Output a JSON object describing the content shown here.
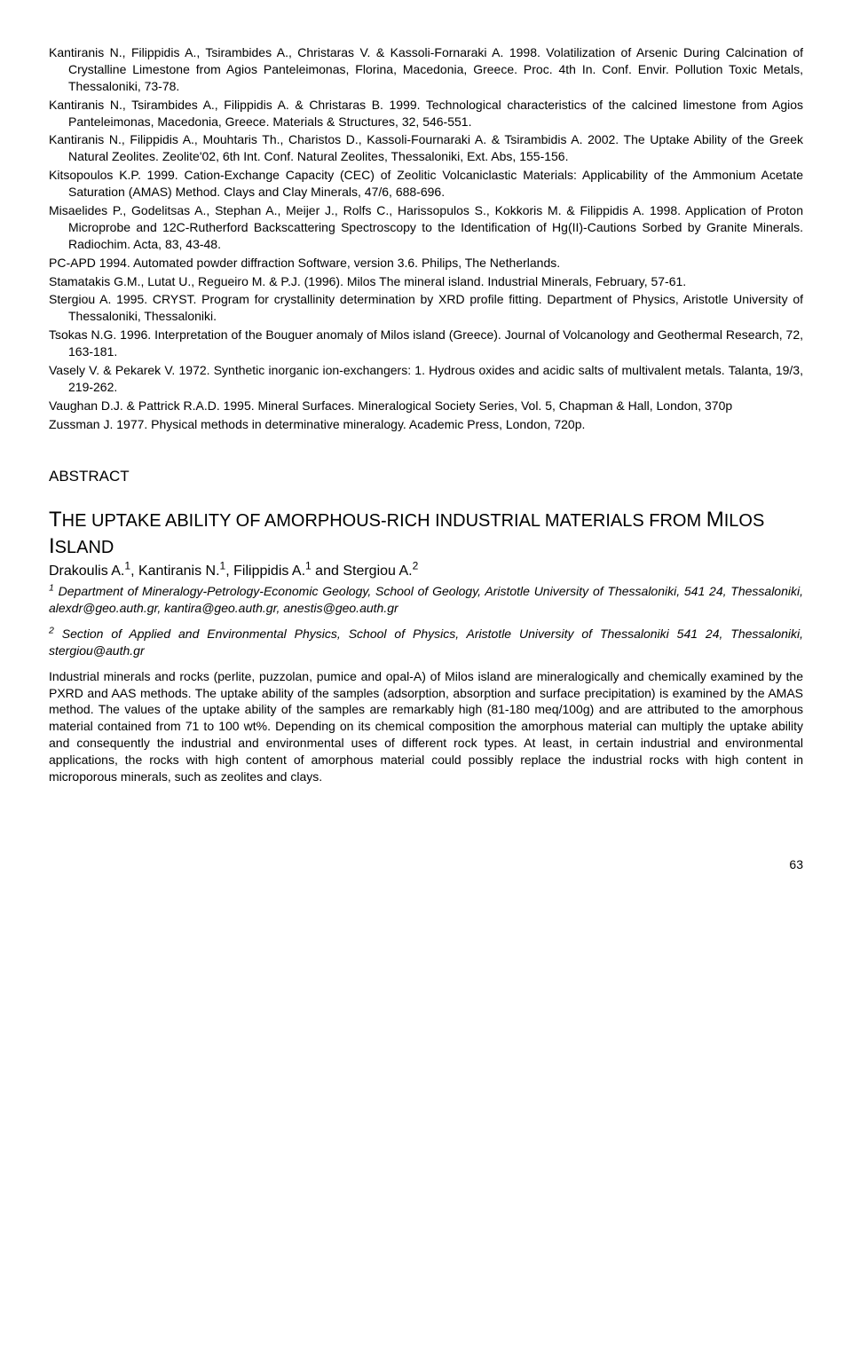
{
  "references": [
    "Kantiranis N., Filippidis A., Tsirambides A., Christaras V. & Kassoli-Fornaraki A. 1998. Volatilization of Arsenic During Calcination of Crystalline Limestone from Agios Panteleimonas, Florina, Macedonia, Greece. Proc. 4th In. Conf. Envir. Pollution Toxic Metals, Thessaloniki, 73-78.",
    "Kantiranis N., Tsirambides A., Filippidis A. & Christaras B. 1999. Technological characteristics of the calcined limestone from Agios Panteleimonas, Macedonia, Greece. Materials & Structures, 32, 546-551.",
    "Kantiranis N., Filippidis A., Mouhtaris Th., Charistos D., Kassoli-Fournaraki A. & Tsirambidis A. 2002. The Uptake Ability of the Greek Natural Zeolites. Zeolite'02, 6th Int. Conf. Natural Zeolites, Thessaloniki, Ext. Abs, 155-156.",
    "Kitsopoulos K.P. 1999. Cation-Exchange Capacity (CEC) of Zeolitic Volcaniclastic Materials: Applicability of the Ammonium Acetate Saturation (AMAS) Method. Clays and Clay Minerals, 47/6, 688-696.",
    "Misaelides P., Godelitsas A., Stephan A., Meijer J., Rolfs C., Harissopulos S., Kokkoris M. & Filippidis A. 1998. Application of Proton Microprobe and 12C-Rutherford Backscattering Spectroscopy to the Identification of Hg(II)-Cautions Sorbed by Granite Minerals. Radiochim. Acta, 83, 43-48.",
    "PC-APD 1994. Automated powder diffraction Software, version 3.6. Philips, The Netherlands.",
    "Stamatakis G.M., Lutat U., Regueiro M. & P.J. (1996). Milos The mineral island. Industrial Minerals, February, 57-61.",
    "Stergiou A. 1995. CRYST. Program for crystallinity determination by XRD profile fitting. Department of Physics, Aristotle University of Thessaloniki, Thessaloniki.",
    "Tsokas N.G. 1996. Interpretation of the Bouguer anomaly of Milos island (Greece). Journal of Volcanology and Geothermal Research, 72, 163-181.",
    "Vasely V. & Pekarek V. 1972. Synthetic inorganic ion-exchangers: 1. Hydrous oxides and acidic salts of multivalent metals. Talanta, 19/3, 219-262.",
    "Vaughan D.J. & Pattrick R.A.D. 1995. Mineral Surfaces. Mineralogical Society Series, Vol. 5, Chapman & Hall, London, 370p",
    "Zussman J. 1977. Physical methods in determinative mineralogy. Academic Press, London, 720p."
  ],
  "abstract_heading": "ABSTRACT",
  "title_pre_big1": "T",
  "title_mid1": "HE UPTAKE ABILITY OF AMORPHOUS-RICH INDUSTRIAL MATERIALS FROM ",
  "title_pre_big2": "M",
  "title_mid2": "ILOS ",
  "title_pre_big3": "I",
  "title_mid3": "SLAND",
  "authors": {
    "a1": "Drakoulis A.",
    "s1": "1",
    "a2": ", Kantiranis N.",
    "s2": "1",
    "a3": ", Filippidis A.",
    "s3": "1",
    "a4": " and Stergiou A.",
    "s4": "2"
  },
  "affil1_sup": "1",
  "affil1_text": " Department of Mineralogy-Petrology-Economic Geology, School of Geology, Aristotle University of Thessaloniki, 541 24, Thessaloniki, alexdr@geo.auth.gr, kantira@geo.auth.gr, anestis@geo.auth.gr",
  "affil2_sup": "2",
  "affil2_text": " Section of Applied and Environmental Physics, School of Physics, Aristotle University of Thessaloniki 541 24, Thessaloniki, stergiou@auth.gr",
  "abstract_body": "Industrial minerals and rocks (perlite, puzzolan, pumice and opal-A) of Milos island are mineralogically and chemically examined by the PXRD and AAS methods. The uptake ability of the samples (adsorption, absorption and surface precipitation) is examined by the AMAS method. The values of the uptake ability of the samples are remarkably high (81-180 meq/100g) and are attributed to the amorphous material contained from 71 to 100 wt%. Depending on its chemical composition the amorphous material can multiply the uptake ability and consequently the industrial and environmental uses of different rock types. At least, in certain industrial and environmental applications, the rocks with high content of amorphous material could possibly replace the industrial rocks with high content in microporous minerals, such as zeolites and clays.",
  "page_number": "63"
}
